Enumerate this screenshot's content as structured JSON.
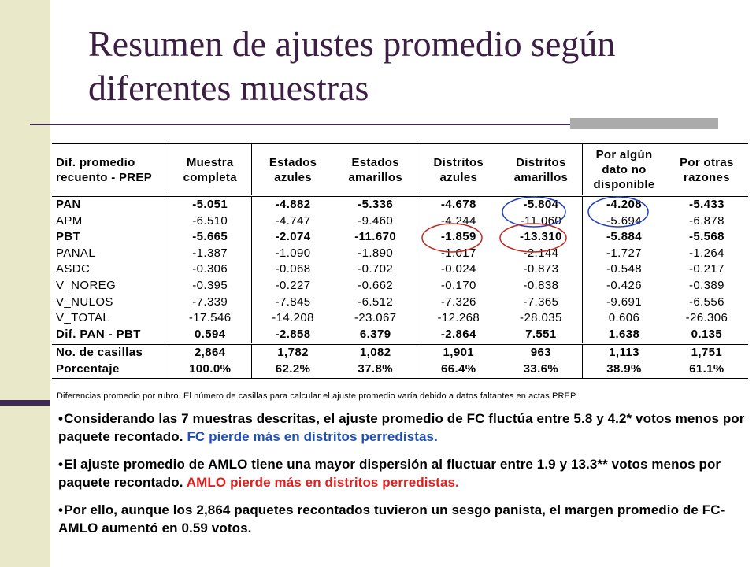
{
  "title": "Resumen de ajustes promedio según diferentes muestras",
  "table": {
    "headers": [
      "Dif. promedio recuento - PREP",
      "Muestra completa",
      "Estados azules",
      "Estados amarillos",
      "Distritos azules",
      "Distritos amarillos",
      "Por algún dato no disponible",
      "Por otras razones"
    ],
    "rows": [
      {
        "bold": true,
        "cells": [
          "PAN",
          "-5.051",
          "-4.882",
          "-5.336",
          "-4.678",
          "-5.804",
          "-4.208",
          "-5.433"
        ]
      },
      {
        "bold": false,
        "cells": [
          "APM",
          "-6.510",
          "-4.747",
          "-9.460",
          "-4.244",
          "-11.060",
          "-5.694",
          "-6.878"
        ]
      },
      {
        "bold": true,
        "cells": [
          "PBT",
          "-5.665",
          "-2.074",
          "-11.670",
          "-1.859",
          "-13.310",
          "-5.884",
          "-5.568"
        ]
      },
      {
        "bold": false,
        "cells": [
          "PANAL",
          "-1.387",
          "-1.090",
          "-1.890",
          "-1.017",
          "-2.144",
          "-1.727",
          "-1.264"
        ]
      },
      {
        "bold": false,
        "cells": [
          "ASDC",
          "-0.306",
          "-0.068",
          "-0.702",
          "-0.024",
          "-0.873",
          "-0.548",
          "-0.217"
        ]
      },
      {
        "bold": false,
        "cells": [
          "V_NOREG",
          "-0.395",
          "-0.227",
          "-0.662",
          "-0.170",
          "-0.838",
          "-0.426",
          "-0.389"
        ]
      },
      {
        "bold": false,
        "cells": [
          "V_NULOS",
          "-7.339",
          "-7.845",
          "-6.512",
          "-7.326",
          "-7.365",
          "-9.691",
          "-6.556"
        ]
      },
      {
        "bold": false,
        "cells": [
          "V_TOTAL",
          "-17.546",
          "-14.208",
          "-23.067",
          "-12.268",
          "-28.035",
          "0.606",
          "-26.306"
        ]
      },
      {
        "bold": true,
        "cells": [
          "Dif. PAN - PBT",
          "0.594",
          "-2.858",
          "6.379",
          "-2.864",
          "7.551",
          "1.638",
          "0.135"
        ]
      }
    ],
    "footer_rows": [
      {
        "cells": [
          "No. de casillas",
          "2,864",
          "1,782",
          "1,082",
          "1,901",
          "963",
          "1,113",
          "1,751"
        ]
      },
      {
        "cells": [
          "Porcentaje",
          "100.0%",
          "62.2%",
          "37.8%",
          "66.4%",
          "33.6%",
          "38.9%",
          "61.1%"
        ]
      }
    ]
  },
  "highlight_colors": {
    "blue_circle": "#1F3FBF",
    "red_circle": "#C0281E"
  },
  "note": "Diferencias promedio por rubro. El número de casillas para calcular el ajuste promedio varía debido a datos faltantes en actas PREP.",
  "bullets": [
    {
      "text": "Considerando las 7 muestras descritas, el ajuste promedio de FC fluctúa entre 5.8 y 4.2* votos menos por paquete recontado. ",
      "highlight": "FC pierde más en distritos perredistas.",
      "highlight_color": "#1F4FB4"
    },
    {
      "text": "El ajuste promedio de AMLO tiene una mayor dispersión al fluctuar entre 1.9 y 13.3** votos menos por paquete recontado.  ",
      "highlight": "AMLO pierde más en distritos perredistas.",
      "highlight_color": "#E02020"
    },
    {
      "text": "Por ello, aunque los 2,864 paquetes recontados tuvieron un sesgo panista, el margen promedio de FC-AMLO aumentó en 0.59 votos.",
      "highlight": "",
      "highlight_color": ""
    }
  ]
}
